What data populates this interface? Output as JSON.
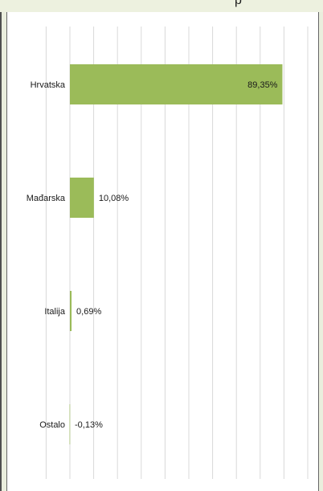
{
  "title_fragment": "p",
  "chart_data": {
    "type": "bar",
    "orientation": "horizontal",
    "categories": [
      "Hrvatska",
      "Mađarska",
      "Italija",
      "Ostalo"
    ],
    "values": [
      89.35,
      10.08,
      0.69,
      -0.13
    ],
    "value_labels": [
      "89,35%",
      "10,08%",
      "0,69%",
      "-0,13%"
    ],
    "xlim": [
      -10,
      100
    ],
    "grid": true,
    "bar_color": "#9bbb59",
    "title": "",
    "xlabel": "",
    "ylabel": ""
  }
}
